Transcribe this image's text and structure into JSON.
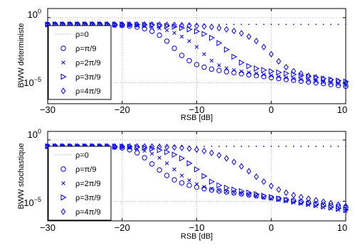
{
  "colors": {
    "marker": "#0000ff",
    "axis": "#000000",
    "grid": "#9a9a9a",
    "background": "#ffffff"
  },
  "chart_data": [
    {
      "type": "scatter",
      "xlabel": "RSB [dB]",
      "ylabel": "BWW déterministe",
      "x_ticks": [
        "−30",
        "−20",
        "−10",
        "0",
        "10"
      ],
      "y_ticks": [
        {
          "base": "10",
          "exp": "0"
        },
        {
          "base": "10",
          "exp": "−5"
        }
      ],
      "xlim": [
        -30,
        10
      ],
      "ylim_log10": [
        -6.6,
        0.7
      ],
      "y_scale": "log",
      "grid": true,
      "legend_position": "left",
      "x": [
        -30,
        -29,
        -28,
        -27,
        -26,
        -25,
        -24,
        -23,
        -22,
        -21,
        -20,
        -19,
        -18,
        -17,
        -16,
        -15,
        -14,
        -13,
        -12,
        -11,
        -10,
        -9,
        -8,
        -7,
        -6,
        -5,
        -4,
        -3,
        -2,
        -1,
        0,
        1,
        2,
        3,
        4,
        5,
        6,
        7,
        8,
        9,
        10
      ],
      "series": [
        {
          "name": "ρ=0",
          "marker": "dot",
          "log10_values": [
            -0.52,
            -0.52,
            -0.52,
            -0.52,
            -0.52,
            -0.52,
            -0.52,
            -0.52,
            -0.52,
            -0.52,
            -0.52,
            -0.52,
            -0.52,
            -0.52,
            -0.52,
            -0.52,
            -0.52,
            -0.52,
            -0.52,
            -0.52,
            -0.52,
            -0.52,
            -0.52,
            -0.52,
            -0.52,
            -0.52,
            -0.52,
            -0.52,
            -0.52,
            -0.52,
            -0.52,
            -0.52,
            -0.52,
            -0.52,
            -0.52,
            -0.52,
            -0.52,
            -0.52,
            -0.52,
            -0.52,
            -0.52
          ]
        },
        {
          "name": "ρ=π/9",
          "marker": "circle",
          "log10_values": [
            -0.52,
            -0.52,
            -0.52,
            -0.52,
            -0.52,
            -0.52,
            -0.52,
            -0.53,
            -0.55,
            -0.57,
            -0.6,
            -0.65,
            -0.72,
            -0.85,
            -1.05,
            -1.35,
            -1.8,
            -2.35,
            -2.9,
            -3.3,
            -3.6,
            -3.8,
            -3.95,
            -4.05,
            -4.15,
            -4.22,
            -4.3,
            -4.38,
            -4.45,
            -4.52,
            -4.6,
            -4.67,
            -4.74,
            -4.8,
            -4.87,
            -4.93,
            -5.0,
            -5.06,
            -5.13,
            -5.2,
            -5.26
          ]
        },
        {
          "name": "ρ=2π/9",
          "marker": "x",
          "log10_values": [
            -0.52,
            -0.52,
            -0.52,
            -0.52,
            -0.52,
            -0.52,
            -0.52,
            -0.52,
            -0.52,
            -0.53,
            -0.54,
            -0.56,
            -0.6,
            -0.65,
            -0.72,
            -0.82,
            -0.97,
            -1.17,
            -1.45,
            -1.8,
            -2.25,
            -2.8,
            -3.3,
            -3.65,
            -3.88,
            -4.02,
            -4.12,
            -4.2,
            -4.28,
            -4.36,
            -4.44,
            -4.52,
            -4.6,
            -4.67,
            -4.74,
            -4.81,
            -4.88,
            -4.95,
            -5.02,
            -5.09,
            -5.16
          ]
        },
        {
          "name": "ρ=3π/9",
          "marker": "triangle-right",
          "log10_values": [
            -0.52,
            -0.52,
            -0.52,
            -0.52,
            -0.52,
            -0.52,
            -0.52,
            -0.52,
            -0.52,
            -0.52,
            -0.52,
            -0.53,
            -0.54,
            -0.55,
            -0.57,
            -0.6,
            -0.64,
            -0.7,
            -0.79,
            -0.9,
            -1.05,
            -1.25,
            -1.55,
            -1.95,
            -2.45,
            -3.0,
            -3.45,
            -3.72,
            -3.9,
            -4.02,
            -4.12,
            -4.2,
            -4.28,
            -4.36,
            -4.44,
            -4.52,
            -4.6,
            -4.68,
            -4.75,
            -4.83,
            -4.9
          ]
        },
        {
          "name": "ρ=4π/9",
          "marker": "diamond",
          "log10_values": [
            -0.52,
            -0.52,
            -0.52,
            -0.52,
            -0.52,
            -0.52,
            -0.52,
            -0.52,
            -0.52,
            -0.52,
            -0.52,
            -0.52,
            -0.52,
            -0.53,
            -0.53,
            -0.54,
            -0.55,
            -0.56,
            -0.58,
            -0.6,
            -0.63,
            -0.67,
            -0.72,
            -0.8,
            -0.9,
            -1.02,
            -1.2,
            -1.45,
            -1.8,
            -2.25,
            -2.8,
            -3.35,
            -3.8,
            -4.1,
            -4.3,
            -4.45,
            -4.58,
            -4.7,
            -4.8,
            -4.9,
            -5.0
          ]
        }
      ]
    },
    {
      "type": "scatter",
      "xlabel": "RSB [dB]",
      "ylabel": "BWW stochastique",
      "x_ticks": [
        "−30",
        "−20",
        "−10",
        "0",
        "10"
      ],
      "y_ticks": [
        {
          "base": "10",
          "exp": "0"
        },
        {
          "base": "10",
          "exp": "−5"
        }
      ],
      "xlim": [
        -30,
        10
      ],
      "ylim_log10": [
        -6.6,
        0.7
      ],
      "y_scale": "log",
      "grid": true,
      "legend_position": "left",
      "x": [
        -30,
        -29,
        -28,
        -27,
        -26,
        -25,
        -24,
        -23,
        -22,
        -21,
        -20,
        -19,
        -18,
        -17,
        -16,
        -15,
        -14,
        -13,
        -12,
        -11,
        -10,
        -9,
        -8,
        -7,
        -6,
        -5,
        -4,
        -3,
        -2,
        -1,
        0,
        1,
        2,
        3,
        4,
        5,
        6,
        7,
        8,
        9,
        10
      ],
      "series": [
        {
          "name": "ρ=0",
          "marker": "dot",
          "log10_values": [
            -0.52,
            -0.52,
            -0.52,
            -0.52,
            -0.52,
            -0.52,
            -0.52,
            -0.52,
            -0.52,
            -0.52,
            -0.52,
            -0.52,
            -0.52,
            -0.52,
            -0.52,
            -0.52,
            -0.52,
            -0.52,
            -0.52,
            -0.52,
            -0.52,
            -0.52,
            -0.52,
            -0.52,
            -0.52,
            -0.52,
            -0.52,
            -0.52,
            -0.52,
            -0.52,
            -0.52,
            -0.52,
            -0.52,
            -0.52,
            -0.52,
            -0.52,
            -0.52,
            -0.52,
            -0.52,
            -0.52,
            -0.52
          ]
        },
        {
          "name": "ρ=π/9",
          "marker": "circle",
          "log10_values": [
            -0.52,
            -0.52,
            -0.52,
            -0.52,
            -0.52,
            -0.52,
            -0.52,
            -0.53,
            -0.55,
            -0.58,
            -0.65,
            -0.8,
            -1.05,
            -1.45,
            -1.95,
            -2.45,
            -2.9,
            -3.25,
            -3.5,
            -3.7,
            -3.85,
            -3.98,
            -4.08,
            -4.16,
            -4.24,
            -4.32,
            -4.4,
            -4.48,
            -4.56,
            -4.64,
            -4.72,
            -4.8,
            -4.88,
            -4.96,
            -5.04,
            -5.12,
            -5.2,
            -5.28,
            -5.36,
            -5.44,
            -5.52
          ]
        },
        {
          "name": "ρ=2π/9",
          "marker": "x",
          "log10_values": [
            -0.52,
            -0.52,
            -0.52,
            -0.52,
            -0.52,
            -0.52,
            -0.52,
            -0.52,
            -0.53,
            -0.55,
            -0.58,
            -0.63,
            -0.72,
            -0.88,
            -1.12,
            -1.45,
            -1.9,
            -2.4,
            -2.9,
            -3.3,
            -3.6,
            -3.82,
            -3.98,
            -4.1,
            -4.2,
            -4.3,
            -4.4,
            -4.5,
            -4.6,
            -4.7,
            -4.8,
            -4.9,
            -5.0,
            -5.1,
            -5.2,
            -5.3,
            -5.4,
            -5.5,
            -5.6,
            -5.7,
            -5.8
          ]
        },
        {
          "name": "ρ=3π/9",
          "marker": "triangle-right",
          "log10_values": [
            -0.52,
            -0.52,
            -0.52,
            -0.52,
            -0.52,
            -0.52,
            -0.52,
            -0.52,
            -0.52,
            -0.53,
            -0.54,
            -0.56,
            -0.59,
            -0.64,
            -0.72,
            -0.83,
            -0.99,
            -1.2,
            -1.5,
            -1.9,
            -2.4,
            -2.95,
            -3.4,
            -3.7,
            -3.9,
            -4.05,
            -4.18,
            -4.3,
            -4.42,
            -4.54,
            -4.66,
            -4.78,
            -4.9,
            -5.0,
            -5.1,
            -5.2,
            -5.3,
            -5.4,
            -5.5,
            -5.6,
            -5.7
          ]
        },
        {
          "name": "ρ=4π/9",
          "marker": "diamond",
          "log10_values": [
            -0.52,
            -0.52,
            -0.52,
            -0.52,
            -0.52,
            -0.52,
            -0.52,
            -0.52,
            -0.52,
            -0.52,
            -0.52,
            -0.52,
            -0.53,
            -0.53,
            -0.54,
            -0.55,
            -0.57,
            -0.6,
            -0.64,
            -0.7,
            -0.78,
            -0.9,
            -1.05,
            -1.25,
            -1.5,
            -1.8,
            -2.15,
            -2.55,
            -3.0,
            -3.4,
            -3.75,
            -4.05,
            -4.3,
            -4.5,
            -4.66,
            -4.8,
            -4.92,
            -5.04,
            -5.16,
            -5.28,
            -5.4
          ]
        }
      ]
    }
  ]
}
